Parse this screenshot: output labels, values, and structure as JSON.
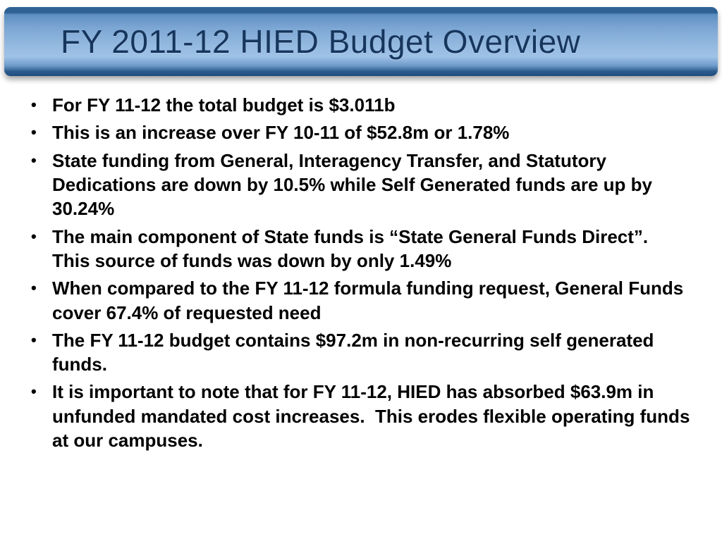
{
  "slide": {
    "title": "FY 2011-12 HIED Budget Overview",
    "bullet_char": "•",
    "bullets": [
      "For FY 11-12 the total budget is $3.011b",
      "This is an increase over FY 10-11 of $52.8m or 1.78%",
      "State funding from General, Interagency Transfer, and Statutory Dedications are down by 10.5% while Self Generated funds are up by 30.24%",
      "The main component of State funds is “State General Funds Direct”.  This source of funds was down by only 1.49%",
      "When compared to the FY 11-12 formula funding request, General Funds cover 67.4% of requested need",
      "The FY 11-12 budget contains $97.2m in non-recurring self generated funds.",
      "It is important to note that for FY 11-12, HIED has absorbed $63.9m in unfunded mandated cost increases.  This erodes flexible operating funds at our campuses."
    ]
  },
  "colors": {
    "banner_top_edge": "#2E6094",
    "banner_mid_light": "#9FC2E6",
    "banner_bottom_edge": "#1F4D7E",
    "title_text": "#17365D",
    "body_text": "#000000",
    "background": "#FFFFFF"
  }
}
